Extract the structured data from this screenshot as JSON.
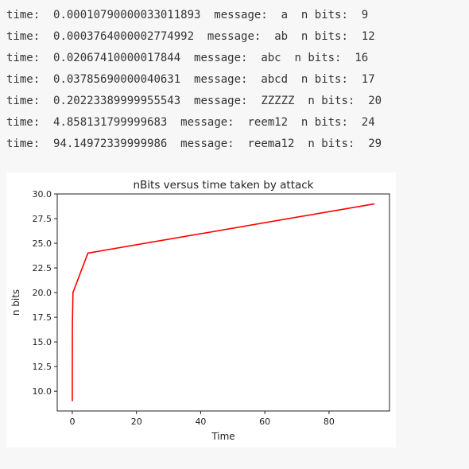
{
  "output": {
    "rows": [
      {
        "time": "0.00010790000033011893",
        "message": "a",
        "bits": "9"
      },
      {
        "time": "0.0003764000002774992",
        "message": "ab",
        "bits": "12"
      },
      {
        "time": "0.02067410000017844",
        "message": "abc",
        "bits": "16"
      },
      {
        "time": "0.03785690000040631",
        "message": "abcd",
        "bits": "17"
      },
      {
        "time": "0.20223389999955543",
        "message": "ZZZZZ",
        "bits": "20"
      },
      {
        "time": "4.858131799999683",
        "message": "reem12",
        "bits": "24"
      },
      {
        "time": "94.14972339999986",
        "message": "reema12",
        "bits": "29"
      }
    ]
  },
  "chart_data": {
    "type": "line",
    "title": "nBits versus time taken by attack",
    "xlabel": "Time",
    "ylabel": "n bits",
    "x": [
      0.00010790000033011893,
      0.0003764000002774992,
      0.02067410000017844,
      0.03785690000040631,
      0.20223389999955543,
      4.858131799999683,
      94.14972339999986
    ],
    "series": [
      {
        "values": [
          9,
          12,
          16,
          17,
          20,
          24,
          29
        ],
        "color": "#ff0000"
      }
    ],
    "xlim": [
      -4.7,
      98.85
    ],
    "ylim": [
      8.0,
      30.0
    ],
    "xticks": [
      0,
      20,
      40,
      60,
      80
    ],
    "yticks": [
      10.0,
      12.5,
      15.0,
      17.5,
      20.0,
      22.5,
      25.0,
      27.5,
      30.0
    ],
    "xtick_labels": [
      "0",
      "20",
      "40",
      "60",
      "80"
    ],
    "ytick_labels": [
      "10.0",
      "12.5",
      "15.0",
      "17.5",
      "20.0",
      "22.5",
      "25.0",
      "27.5",
      "30.0"
    ],
    "grid": false,
    "legend": "none"
  }
}
